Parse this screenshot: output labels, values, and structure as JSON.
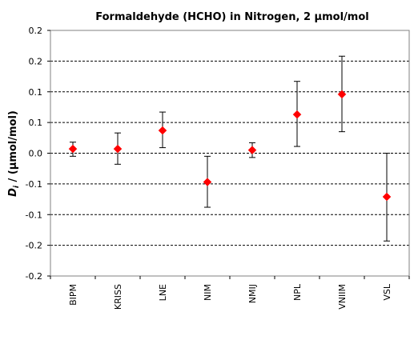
{
  "chart_data": {
    "type": "scatter",
    "title": "Formaldehyde (HCHO) in Nitrogen,  2 µmol/mol",
    "ylabel_var": "D",
    "ylabel_sub": "i",
    "ylabel_rest": " / (µmol/mol)",
    "xlabel": "",
    "categories": [
      "BIPM",
      "KRISS",
      "LNE",
      "NIM",
      "NMIJ",
      "NPL",
      "VNIIM",
      "VSL"
    ],
    "series": [
      {
        "values": [
          0.007,
          0.007,
          0.037,
          -0.047,
          0.005,
          0.063,
          0.096,
          -0.071
        ],
        "error_low": [
          -0.005,
          -0.018,
          0.009,
          -0.088,
          -0.007,
          0.011,
          0.035,
          -0.143
        ],
        "error_high": [
          0.018,
          0.033,
          0.067,
          -0.005,
          0.017,
          0.117,
          0.158,
          0.0
        ],
        "marker": "diamond",
        "color": "#ff0000"
      }
    ],
    "ylim": [
      -0.2,
      0.2
    ],
    "yticks": [
      0.2,
      0.15,
      0.1,
      0.05,
      0.0,
      -0.05,
      -0.1,
      -0.15,
      -0.2
    ],
    "ytick_labels": [
      "0.2",
      "0.2",
      "0.1",
      "0.1",
      "0.0",
      "-0.1",
      "-0.1",
      "-0.2",
      "-0.2"
    ],
    "grid": "horizontal dashed",
    "legend": "none"
  }
}
